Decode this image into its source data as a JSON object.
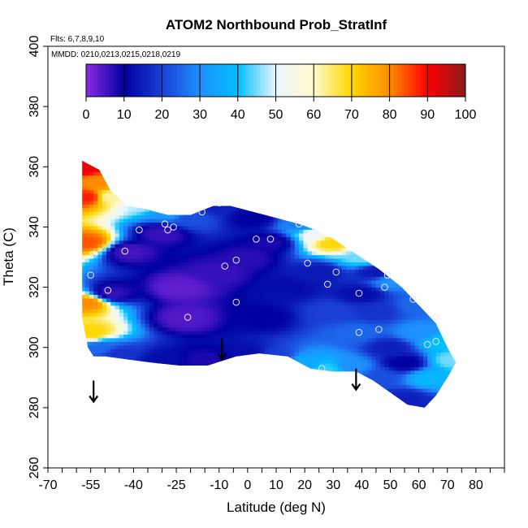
{
  "chart_data": {
    "type": "heatmap",
    "title": "ATOM2 Northbound Prob_StratInf",
    "flights_note": "Flts: 6,7,8,9,10",
    "dates_note": "MMDD: 0210,0213,0215,0218,0219",
    "xlabel": "Latitude (deg N)",
    "ylabel": "Theta (C)",
    "xlim": [
      -70,
      90
    ],
    "ylim": [
      260,
      400
    ],
    "xticks": [
      -70,
      -55,
      -40,
      -25,
      -10,
      0,
      10,
      20,
      30,
      40,
      50,
      60,
      70,
      80
    ],
    "xtick_labels": [
      "-70",
      "-55",
      "-40",
      "-25",
      "-10",
      "0",
      "10",
      "20",
      "30",
      "40",
      "50",
      "60",
      "70",
      "80"
    ],
    "yticks": [
      260,
      280,
      300,
      320,
      340,
      360,
      380,
      400
    ],
    "ytick_labels": [
      "260",
      "280",
      "300",
      "320",
      "340",
      "360",
      "380",
      "400"
    ],
    "colorbar": {
      "range": [
        0,
        100
      ],
      "ticks": [
        0,
        10,
        20,
        30,
        40,
        50,
        60,
        70,
        80,
        90,
        100
      ],
      "tick_labels": [
        "0",
        "10",
        "20",
        "30",
        "40",
        "50",
        "60",
        "70",
        "80",
        "90",
        "100"
      ],
      "stops": [
        {
          "v": 0,
          "color": "#8a2be2"
        },
        {
          "v": 10,
          "color": "#0000a0"
        },
        {
          "v": 20,
          "color": "#1a3fd6"
        },
        {
          "v": 30,
          "color": "#1e90ff"
        },
        {
          "v": 40,
          "color": "#00bfff"
        },
        {
          "v": 50,
          "color": "#eaf6ff"
        },
        {
          "v": 60,
          "color": "#fffacd"
        },
        {
          "v": 70,
          "color": "#ffd700"
        },
        {
          "v": 80,
          "color": "#ff8c00"
        },
        {
          "v": 90,
          "color": "#ff0000"
        },
        {
          "v": 100,
          "color": "#8b1a1a"
        }
      ]
    },
    "domain_polygon": [
      [
        -58,
        362
      ],
      [
        -52,
        359
      ],
      [
        -48,
        352
      ],
      [
        -42,
        347
      ],
      [
        -36,
        346
      ],
      [
        -28,
        344
      ],
      [
        -20,
        344
      ],
      [
        -12,
        347
      ],
      [
        -6,
        347
      ],
      [
        2,
        345
      ],
      [
        10,
        343
      ],
      [
        18,
        341
      ],
      [
        24,
        339
      ],
      [
        30,
        336
      ],
      [
        38,
        331
      ],
      [
        46,
        326
      ],
      [
        54,
        320
      ],
      [
        60,
        314
      ],
      [
        66,
        308
      ],
      [
        70,
        300
      ],
      [
        73,
        295
      ],
      [
        70,
        290
      ],
      [
        66,
        284
      ],
      [
        62,
        280
      ],
      [
        56,
        281
      ],
      [
        50,
        285
      ],
      [
        44,
        289
      ],
      [
        38,
        292
      ],
      [
        30,
        292
      ],
      [
        22,
        293
      ],
      [
        14,
        297
      ],
      [
        4,
        298
      ],
      [
        -4,
        297
      ],
      [
        -14,
        294
      ],
      [
        -24,
        294
      ],
      [
        -34,
        295
      ],
      [
        -42,
        296
      ],
      [
        -50,
        297
      ],
      [
        -54,
        297
      ],
      [
        -56,
        300
      ],
      [
        -58,
        310
      ],
      [
        -58,
        362
      ]
    ],
    "field_points": [
      {
        "x": -57,
        "y": 360,
        "v": 92
      },
      {
        "x": -56,
        "y": 350,
        "v": 88
      },
      {
        "x": -56,
        "y": 335,
        "v": 84
      },
      {
        "x": -56,
        "y": 315,
        "v": 80
      },
      {
        "x": -55,
        "y": 305,
        "v": 70
      },
      {
        "x": -52,
        "y": 355,
        "v": 80
      },
      {
        "x": -48,
        "y": 350,
        "v": 62
      },
      {
        "x": -38,
        "y": 348,
        "v": 48
      },
      {
        "x": -27,
        "y": 345,
        "v": 32
      },
      {
        "x": -20,
        "y": 343,
        "v": 22
      },
      {
        "x": -12,
        "y": 347,
        "v": 15
      },
      {
        "x": 2,
        "y": 343,
        "v": 10
      },
      {
        "x": 18,
        "y": 341,
        "v": 28
      },
      {
        "x": 24,
        "y": 338,
        "v": 52
      },
      {
        "x": 30,
        "y": 335,
        "v": 70
      },
      {
        "x": 40,
        "y": 330,
        "v": 45
      },
      {
        "x": 50,
        "y": 322,
        "v": 30
      },
      {
        "x": 60,
        "y": 314,
        "v": 25
      },
      {
        "x": 68,
        "y": 302,
        "v": 40
      },
      {
        "x": 72,
        "y": 296,
        "v": 45
      },
      {
        "x": 64,
        "y": 290,
        "v": 38
      },
      {
        "x": 55,
        "y": 283,
        "v": 15
      },
      {
        "x": 46,
        "y": 290,
        "v": 22
      },
      {
        "x": 36,
        "y": 294,
        "v": 30
      },
      {
        "x": 28,
        "y": 293,
        "v": 42
      },
      {
        "x": 20,
        "y": 295,
        "v": 35
      },
      {
        "x": 10,
        "y": 297,
        "v": 20
      },
      {
        "x": 0,
        "y": 298,
        "v": 12
      },
      {
        "x": -15,
        "y": 296,
        "v": 8
      },
      {
        "x": -30,
        "y": 296,
        "v": 12
      },
      {
        "x": -45,
        "y": 298,
        "v": 18
      },
      {
        "x": -52,
        "y": 300,
        "v": 25
      },
      {
        "x": -48,
        "y": 318,
        "v": 6
      },
      {
        "x": -42,
        "y": 332,
        "v": 5
      },
      {
        "x": -30,
        "y": 338,
        "v": 6
      },
      {
        "x": -24,
        "y": 320,
        "v": 3
      },
      {
        "x": -22,
        "y": 310,
        "v": 4
      },
      {
        "x": -10,
        "y": 325,
        "v": 6
      },
      {
        "x": 0,
        "y": 330,
        "v": 7
      },
      {
        "x": 8,
        "y": 335,
        "v": 8
      },
      {
        "x": 5,
        "y": 310,
        "v": 10
      },
      {
        "x": 15,
        "y": 320,
        "v": 12
      },
      {
        "x": 25,
        "y": 325,
        "v": 14
      },
      {
        "x": 30,
        "y": 312,
        "v": 20
      },
      {
        "x": 38,
        "y": 305,
        "v": 25
      },
      {
        "x": 45,
        "y": 312,
        "v": 18
      },
      {
        "x": 50,
        "y": 300,
        "v": 15
      },
      {
        "x": 55,
        "y": 295,
        "v": 10
      },
      {
        "x": 60,
        "y": 305,
        "v": 30
      },
      {
        "x": 40,
        "y": 318,
        "v": 12
      },
      {
        "x": 45,
        "y": 325,
        "v": 14
      }
    ],
    "observations": [
      {
        "x": -55,
        "y": 324
      },
      {
        "x": -54,
        "y": 331
      },
      {
        "x": -49,
        "y": 319
      },
      {
        "x": -43,
        "y": 332
      },
      {
        "x": -38,
        "y": 339
      },
      {
        "x": -29,
        "y": 341
      },
      {
        "x": -28,
        "y": 339
      },
      {
        "x": -26,
        "y": 340
      },
      {
        "x": -21,
        "y": 310
      },
      {
        "x": -16,
        "y": 345
      },
      {
        "x": -10,
        "y": 348
      },
      {
        "x": -8,
        "y": 327
      },
      {
        "x": -4,
        "y": 315
      },
      {
        "x": -4,
        "y": 329
      },
      {
        "x": 3,
        "y": 336
      },
      {
        "x": 8,
        "y": 336
      },
      {
        "x": 18,
        "y": 341
      },
      {
        "x": 21,
        "y": 328
      },
      {
        "x": 28,
        "y": 321
      },
      {
        "x": 31,
        "y": 325
      },
      {
        "x": 26,
        "y": 293
      },
      {
        "x": 39,
        "y": 318
      },
      {
        "x": 39,
        "y": 305
      },
      {
        "x": 46,
        "y": 306
      },
      {
        "x": 48,
        "y": 320
      },
      {
        "x": 49,
        "y": 324
      },
      {
        "x": 58,
        "y": 316
      },
      {
        "x": 63,
        "y": 301
      },
      {
        "x": 66,
        "y": 302
      },
      {
        "x": 66,
        "y": 310
      }
    ],
    "arrows": [
      {
        "x": -54,
        "y_top": 289,
        "y_tip": 282
      },
      {
        "x": -9,
        "y_top": 303,
        "y_tip": 296
      },
      {
        "x": 38,
        "y_top": 293,
        "y_tip": 286
      }
    ]
  }
}
